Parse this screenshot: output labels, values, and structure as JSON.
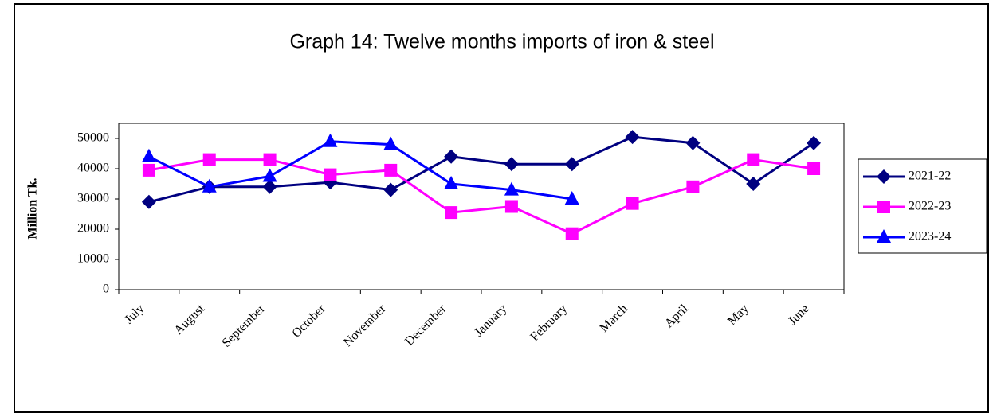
{
  "chart_data": {
    "type": "line",
    "title": "Graph 14: Twelve months imports of iron & steel",
    "y_label": "Million Tk.",
    "categories": [
      "July",
      "August",
      "September",
      "October",
      "November",
      "December",
      "January",
      "February",
      "March",
      "April",
      "May",
      "June"
    ],
    "series": [
      {
        "name": "2021-22",
        "color": "#000080",
        "marker": "diamond",
        "values": [
          29000,
          34000,
          34000,
          35500,
          33000,
          44000,
          41500,
          41500,
          50500,
          48500,
          35000,
          48500
        ]
      },
      {
        "name": "2022-23",
        "color": "#ff00ff",
        "marker": "square",
        "values": [
          39500,
          43000,
          43000,
          38000,
          39500,
          25500,
          27500,
          18500,
          28500,
          34000,
          43000,
          40000
        ]
      },
      {
        "name": "2023-24",
        "color": "#0000ff",
        "marker": "triangle",
        "values": [
          44000,
          34000,
          37500,
          49000,
          48000,
          35000,
          33000,
          30000,
          null,
          null,
          null,
          null
        ]
      }
    ],
    "ylim": [
      0,
      55000
    ],
    "yticks": [
      0,
      10000,
      20000,
      30000,
      40000,
      50000
    ],
    "grid": false,
    "legend": "right"
  }
}
